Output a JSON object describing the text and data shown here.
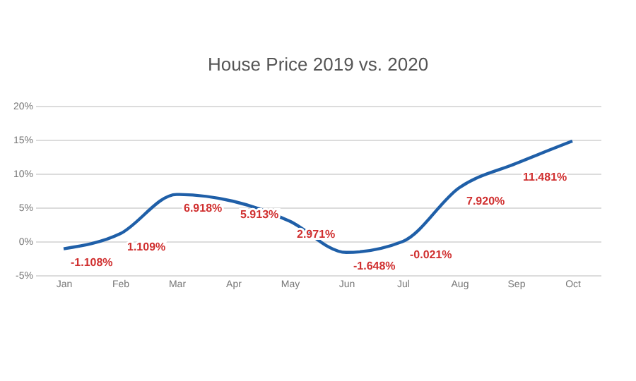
{
  "chart_data": {
    "type": "line",
    "title": "House Price 2019 vs. 2020",
    "categories": [
      "Jan",
      "Feb",
      "Mar",
      "Apr",
      "May",
      "Jun",
      "Jul",
      "Aug",
      "Sep",
      "Oct"
    ],
    "series": [
      {
        "color": "#1f5fa8",
        "values": [
          -1.108,
          1.109,
          6.918,
          5.913,
          2.971,
          -1.648,
          -0.021,
          7.92,
          11.481,
          14.8
        ],
        "value_labels": [
          "-1.108%",
          "1.109%",
          "6.918%",
          "5.913%",
          "2.971%",
          "-1.648%",
          "-0.021%",
          "7.920%",
          "11.481%",
          null
        ]
      }
    ],
    "ylim": [
      -5,
      20
    ],
    "yticks": [
      {
        "value": -5,
        "label": "-5%"
      },
      {
        "value": 0,
        "label": "0%"
      },
      {
        "value": 5,
        "label": "5%"
      },
      {
        "value": 10,
        "label": "10%"
      },
      {
        "value": 15,
        "label": "15%"
      },
      {
        "value": 20,
        "label": "20%"
      }
    ],
    "grid": "y",
    "marker": "none",
    "line_style": "solid"
  }
}
